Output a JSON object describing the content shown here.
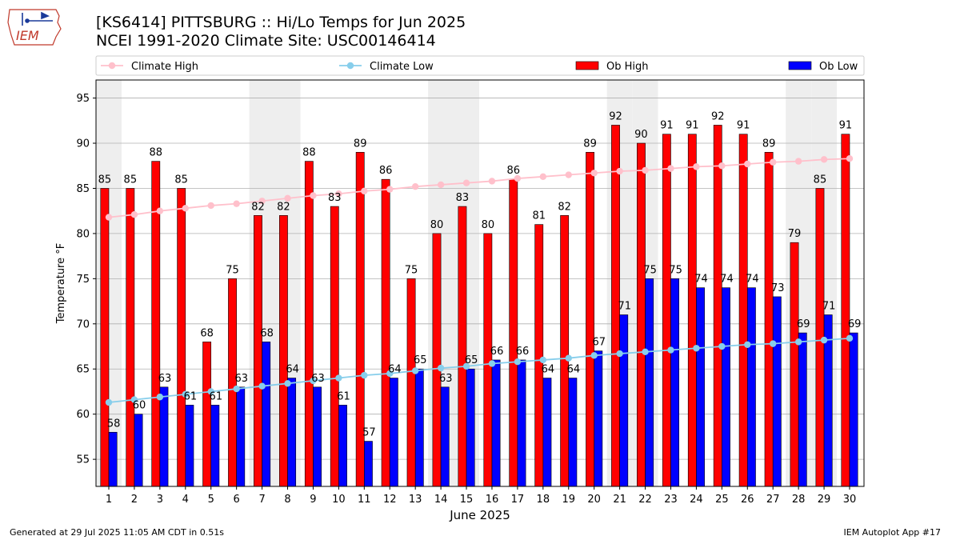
{
  "header": {
    "title_line1": "[KS6414] PITTSBURG :: Hi/Lo Temps for Jun 2025",
    "title_line2": "NCEI 1991-2020 Climate Site: USC00146414",
    "logo_text": "IEM"
  },
  "footer": {
    "generated": "Generated at 29 Jul 2025 11:05 AM CDT in 0.51s",
    "app": "IEM Autoplot App #17"
  },
  "colors": {
    "ob_high": "#ff0000",
    "ob_low": "#0000ff",
    "climate_high": "#ffc0cb",
    "climate_low": "#87ceeb",
    "weekend_shade": "#eeeeee",
    "grid": "#b0b0b0"
  },
  "chart_data": {
    "type": "bar",
    "xlabel": "June 2025",
    "ylabel": "Temperature °F",
    "ylim": [
      52,
      97
    ],
    "yticks": [
      55,
      60,
      65,
      70,
      75,
      80,
      85,
      90,
      95
    ],
    "grid": true,
    "legend_position": "top",
    "categories": [
      "1",
      "2",
      "3",
      "4",
      "5",
      "6",
      "7",
      "8",
      "9",
      "10",
      "11",
      "12",
      "13",
      "14",
      "15",
      "16",
      "17",
      "18",
      "19",
      "20",
      "21",
      "22",
      "23",
      "24",
      "25",
      "26",
      "27",
      "28",
      "29",
      "30"
    ],
    "weekend_days": [
      1,
      7,
      8,
      14,
      15,
      21,
      22,
      28,
      29
    ],
    "series": [
      {
        "name": "Ob High",
        "kind": "bar",
        "values": [
          85,
          85,
          88,
          85,
          68,
          75,
          82,
          82,
          88,
          83,
          89,
          86,
          75,
          80,
          83,
          80,
          86,
          81,
          82,
          89,
          92,
          90,
          91,
          91,
          92,
          91,
          89,
          79,
          85,
          91
        ]
      },
      {
        "name": "Ob Low",
        "kind": "bar",
        "values": [
          58,
          60,
          63,
          61,
          61,
          63,
          68,
          64,
          63,
          61,
          57,
          64,
          65,
          63,
          65,
          66,
          66,
          64,
          64,
          67,
          71,
          75,
          75,
          74,
          74,
          74,
          73,
          69,
          71,
          69
        ]
      },
      {
        "name": "Climate High",
        "kind": "line",
        "values": [
          81.8,
          82.1,
          82.5,
          82.8,
          83.1,
          83.3,
          83.6,
          83.9,
          84.2,
          84.4,
          84.7,
          84.9,
          85.2,
          85.4,
          85.6,
          85.8,
          86.1,
          86.3,
          86.5,
          86.7,
          86.9,
          87.0,
          87.2,
          87.4,
          87.5,
          87.7,
          87.9,
          88.0,
          88.2,
          88.3
        ]
      },
      {
        "name": "Climate Low",
        "kind": "line",
        "values": [
          61.3,
          61.6,
          61.9,
          62.2,
          62.5,
          62.8,
          63.1,
          63.4,
          63.7,
          64.0,
          64.3,
          64.5,
          64.8,
          65.1,
          65.3,
          65.6,
          65.8,
          66.0,
          66.2,
          66.5,
          66.7,
          66.9,
          67.1,
          67.3,
          67.5,
          67.7,
          67.8,
          68.0,
          68.2,
          68.4
        ]
      }
    ]
  }
}
